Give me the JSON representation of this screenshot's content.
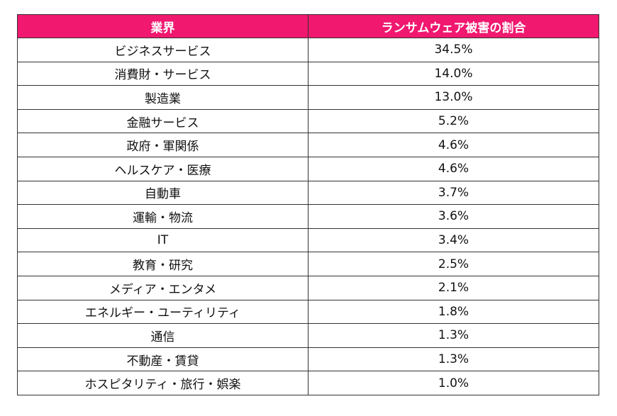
{
  "table": {
    "headers": [
      "業界",
      "ランサムウェア被害の割合"
    ],
    "rows": [
      {
        "industry": "ビジネスサービス",
        "share": "34.5%"
      },
      {
        "industry": "消費財・サービス",
        "share": "14.0%"
      },
      {
        "industry": "製造業",
        "share": "13.0%"
      },
      {
        "industry": "金融サービス",
        "share": "5.2%"
      },
      {
        "industry": "政府・軍関係",
        "share": "4.6%"
      },
      {
        "industry": "ヘルスケア・医療",
        "share": "4.6%"
      },
      {
        "industry": "自動車",
        "share": "3.7%"
      },
      {
        "industry": "運輸・物流",
        "share": "3.6%"
      },
      {
        "industry": "IT",
        "share": "3.4%"
      },
      {
        "industry": "教育・研究",
        "share": "2.5%"
      },
      {
        "industry": "メディア・エンタメ",
        "share": "2.1%"
      },
      {
        "industry": "エネルギー・ユーティリティ",
        "share": "1.8%"
      },
      {
        "industry": "通信",
        "share": "1.3%"
      },
      {
        "industry": "不動産・賃貸",
        "share": "1.3%"
      },
      {
        "industry": "ホスピタリティ・旅行・娯楽",
        "share": "1.0%"
      }
    ]
  },
  "colors": {
    "header_bg": "#f0186f",
    "header_text": "#ffffff",
    "border": "#333333"
  }
}
